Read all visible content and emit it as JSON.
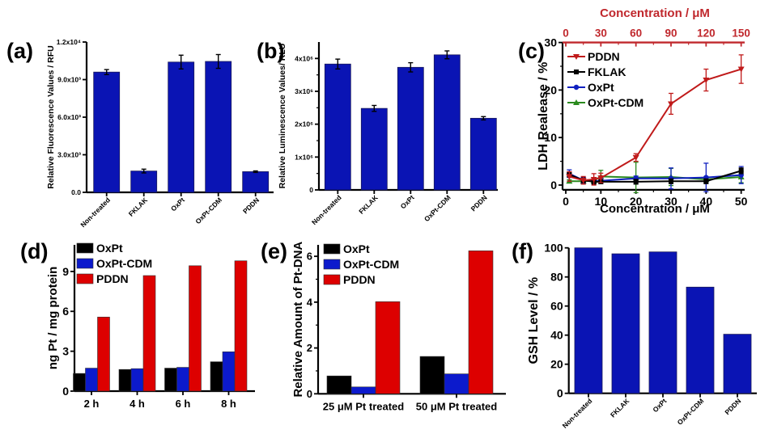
{
  "figure": {
    "colors": {
      "blue_bar": "#0a14b4",
      "black": "#000000",
      "blue": "#0c1acc",
      "red": "#dd0000",
      "pddn_line": "#c01a1a",
      "fklak_line": "#000000",
      "oxpt_line": "#1020c0",
      "cdm_line": "#2a8a1e",
      "top_axis": "#c0282d"
    }
  },
  "chart_data": [
    {
      "id": "a",
      "panel_label": "(a)",
      "type": "bar",
      "title": "",
      "xlabel": "",
      "ylabel": "Relative Fluorescence Values / RFU",
      "categories": [
        "Non-treated",
        "FKLAK",
        "OxPt",
        "OxPt-CDM",
        "PDDN"
      ],
      "values": [
        9600,
        1700,
        10400,
        10450,
        1650
      ],
      "errors": [
        200,
        150,
        550,
        550,
        60
      ],
      "ylim": [
        0,
        12000
      ],
      "yticks": [
        0,
        3000,
        6000,
        9000,
        12000
      ],
      "ytick_labels": [
        "0.0",
        "3.0x10³",
        "6.0x10³",
        "9.0x10³",
        "1.2x10⁴"
      ],
      "grid": false,
      "legend": null
    },
    {
      "id": "b",
      "panel_label": "(b)",
      "type": "bar",
      "title": "",
      "xlabel": "",
      "ylabel": "Relative Luminescence Values/ RLU",
      "categories": [
        "Non-treated",
        "FKLAK",
        "OxPt",
        "OxPt-CDM",
        "PDDN"
      ],
      "values": [
        3830000,
        2480000,
        3730000,
        4110000,
        2180000
      ],
      "errors": [
        150000,
        90000,
        140000,
        120000,
        50000
      ],
      "ylim": [
        0,
        4500000
      ],
      "yticks": [
        0,
        1000000,
        2000000,
        3000000,
        4000000
      ],
      "ytick_labels": [
        "0",
        "1x10⁶",
        "2x10⁶",
        "3x10⁶",
        "4x10⁶"
      ],
      "grid": false,
      "legend": null
    },
    {
      "id": "c",
      "panel_label": "(c)",
      "type": "line",
      "title": "",
      "xlabel": "Concentration / μM",
      "x2label": "Concentration / μM",
      "ylabel": "LDH Realease / %",
      "xlim": [
        0,
        51
      ],
      "ylim": [
        -1,
        30
      ],
      "xticks": [
        0,
        10,
        20,
        30,
        40,
        50
      ],
      "yticks": [
        0,
        10,
        20,
        30
      ],
      "x2ticks": [
        0,
        30,
        60,
        90,
        120,
        150
      ],
      "x2lim": [
        0,
        153
      ],
      "x": [
        1,
        5,
        8,
        10,
        20,
        30,
        40,
        50
      ],
      "series": [
        {
          "name": "PDDN",
          "marker": "triangle-down",
          "values": [
            1.8,
            1.0,
            1.2,
            1.5,
            5.8,
            17.1,
            22.1,
            24.4
          ],
          "errors": [
            1.0,
            0.8,
            1.2,
            1.0,
            0.8,
            2.2,
            2.3,
            3.0
          ]
        },
        {
          "name": "FKLAK",
          "marker": "square",
          "values": [
            2.2,
            1.0,
            0.7,
            0.7,
            0.7,
            0.8,
            0.8,
            3.0
          ],
          "errors": [
            0.5,
            0.5,
            0.5,
            0.4,
            0.5,
            0.5,
            0.5,
            0.6
          ]
        },
        {
          "name": "OxPt",
          "marker": "circle",
          "values": [
            2.4,
            1.0,
            0.8,
            0.9,
            1.4,
            1.4,
            1.6,
            2.1
          ],
          "errors": [
            0.8,
            0.6,
            0.5,
            0.5,
            0.5,
            2.2,
            3.0,
            1.8
          ]
        },
        {
          "name": "OxPt-CDM",
          "marker": "triangle-up",
          "values": [
            0.8,
            0.8,
            0.9,
            1.8,
            1.6,
            1.7,
            1.2,
            1.7
          ],
          "errors": [
            0.3,
            0.6,
            0.5,
            1.3,
            3.2,
            1.8,
            0.6,
            1.2
          ]
        }
      ],
      "legend": "top-left",
      "grid": false
    },
    {
      "id": "d",
      "panel_label": "(d)",
      "type": "bar",
      "title": "",
      "xlabel": "",
      "ylabel": "ng Pt / mg protein",
      "categories": [
        "2 h",
        "4 h",
        "6 h",
        "8 h"
      ],
      "series": [
        {
          "name": "OxPt",
          "values": [
            1.33,
            1.63,
            1.73,
            2.21
          ]
        },
        {
          "name": "OxPt-CDM",
          "values": [
            1.73,
            1.69,
            1.79,
            2.96
          ]
        },
        {
          "name": "PDDN",
          "values": [
            5.57,
            8.69,
            9.43,
            9.8
          ]
        }
      ],
      "ylim": [
        0,
        11
      ],
      "yticks": [
        0,
        3,
        6,
        9
      ],
      "legend": "top-left",
      "grid": false
    },
    {
      "id": "e",
      "panel_label": "(e)",
      "type": "bar",
      "title": "",
      "xlabel": "",
      "ylabel": "Relative Amount of Pt-DNA",
      "categories": [
        "25 μM Pt treated",
        "50 μM Pt treated"
      ],
      "series": [
        {
          "name": "OxPt",
          "values": [
            0.78,
            1.63
          ]
        },
        {
          "name": "OxPt-CDM",
          "values": [
            0.3,
            0.87
          ]
        },
        {
          "name": "PDDN",
          "values": [
            4.02,
            6.24
          ]
        }
      ],
      "ylim": [
        0,
        6.5
      ],
      "yticks": [
        0,
        2,
        4,
        6
      ],
      "legend": "top-left",
      "grid": false
    },
    {
      "id": "f",
      "panel_label": "(f)",
      "type": "bar",
      "title": "",
      "xlabel": "",
      "ylabel": "GSH Level / %",
      "categories": [
        "Non-treated",
        "FKLAK",
        "OxPt",
        "OxPt-CDM",
        "PDDN"
      ],
      "values": [
        100,
        95.9,
        97.2,
        73,
        40.6
      ],
      "ylim": [
        0,
        100
      ],
      "yticks": [
        0,
        20,
        40,
        60,
        80,
        100
      ],
      "legend": null,
      "grid": false
    }
  ]
}
